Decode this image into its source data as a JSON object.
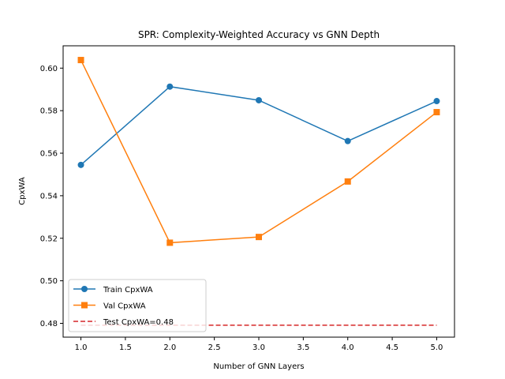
{
  "chart_data": {
    "type": "line",
    "title": "SPR: Complexity-Weighted Accuracy vs GNN Depth",
    "xlabel": "Number of GNN Layers",
    "ylabel": "CpxWA",
    "xlim": [
      0.8,
      5.2
    ],
    "ylim": [
      0.4735,
      0.6105
    ],
    "xticks": [
      1.0,
      1.5,
      2.0,
      2.5,
      3.0,
      3.5,
      4.0,
      4.5,
      5.0
    ],
    "xtick_labels": [
      "1.0",
      "1.5",
      "2.0",
      "2.5",
      "3.0",
      "3.5",
      "4.0",
      "4.5",
      "5.0"
    ],
    "yticks": [
      0.48,
      0.5,
      0.52,
      0.54,
      0.56,
      0.58,
      0.6
    ],
    "ytick_labels": [
      "0.48",
      "0.50",
      "0.52",
      "0.54",
      "0.56",
      "0.58",
      "0.60"
    ],
    "grid": false,
    "legend_position": "lower-left",
    "x": [
      1,
      2,
      3,
      4,
      5
    ],
    "series": [
      {
        "name": "Train CpxWA",
        "values": [
          0.5545,
          0.5913,
          0.5849,
          0.5657,
          0.5845
        ],
        "color": "#1f77b4",
        "marker": "circle"
      },
      {
        "name": "Val CpxWA",
        "values": [
          0.6038,
          0.5179,
          0.5206,
          0.5467,
          0.5793
        ],
        "color": "#ff7f0e",
        "marker": "square"
      }
    ],
    "reference_line": {
      "name": "Test CpxWA=0.48",
      "y": 0.4791,
      "x_range": [
        1,
        5
      ],
      "color": "#d62728",
      "style": "dashed"
    }
  }
}
